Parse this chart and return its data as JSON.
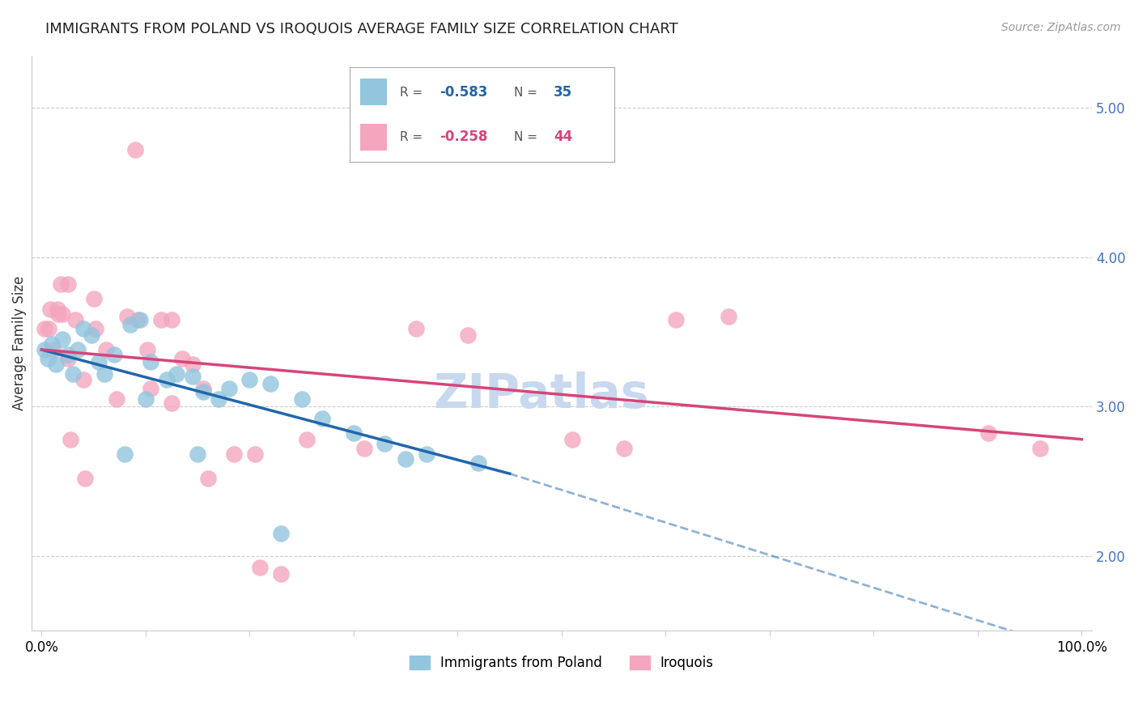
{
  "title": "IMMIGRANTS FROM POLAND VS IROQUOIS AVERAGE FAMILY SIZE CORRELATION CHART",
  "source": "Source: ZipAtlas.com",
  "ylabel": "Average Family Size",
  "watermark": "ZIPatlas",
  "ylim_bottom": 1.5,
  "ylim_top": 5.35,
  "xlim_left": -1.0,
  "xlim_right": 101.0,
  "yticks": [
    2.0,
    3.0,
    4.0,
    5.0
  ],
  "blue_color": "#92c5de",
  "pink_color": "#f4a6be",
  "blue_line_color": "#2166ac",
  "pink_line_color": "#d6457a",
  "blue_scatter": [
    [
      0.3,
      3.38
    ],
    [
      0.6,
      3.32
    ],
    [
      1.0,
      3.42
    ],
    [
      1.4,
      3.28
    ],
    [
      2.0,
      3.45
    ],
    [
      2.5,
      3.35
    ],
    [
      3.0,
      3.22
    ],
    [
      3.5,
      3.38
    ],
    [
      4.0,
      3.52
    ],
    [
      4.8,
      3.48
    ],
    [
      5.5,
      3.3
    ],
    [
      6.0,
      3.22
    ],
    [
      7.0,
      3.35
    ],
    [
      8.5,
      3.55
    ],
    [
      9.5,
      3.58
    ],
    [
      10.5,
      3.3
    ],
    [
      12.0,
      3.18
    ],
    [
      13.0,
      3.22
    ],
    [
      14.5,
      3.2
    ],
    [
      15.5,
      3.1
    ],
    [
      17.0,
      3.05
    ],
    [
      18.0,
      3.12
    ],
    [
      20.0,
      3.18
    ],
    [
      22.0,
      3.15
    ],
    [
      25.0,
      3.05
    ],
    [
      27.0,
      2.92
    ],
    [
      30.0,
      2.82
    ],
    [
      33.0,
      2.75
    ],
    [
      37.0,
      2.68
    ],
    [
      42.0,
      2.62
    ],
    [
      10.0,
      3.05
    ],
    [
      15.0,
      2.68
    ],
    [
      8.0,
      2.68
    ],
    [
      23.0,
      2.15
    ],
    [
      35.0,
      2.65
    ]
  ],
  "pink_scatter": [
    [
      0.3,
      3.52
    ],
    [
      0.7,
      3.52
    ],
    [
      1.1,
      3.38
    ],
    [
      1.6,
      3.62
    ],
    [
      2.0,
      3.62
    ],
    [
      2.5,
      3.32
    ],
    [
      3.2,
      3.58
    ],
    [
      4.0,
      3.18
    ],
    [
      5.2,
      3.52
    ],
    [
      6.2,
      3.38
    ],
    [
      7.2,
      3.05
    ],
    [
      8.2,
      3.6
    ],
    [
      9.2,
      3.58
    ],
    [
      10.2,
      3.38
    ],
    [
      11.5,
      3.58
    ],
    [
      12.5,
      3.58
    ],
    [
      13.5,
      3.32
    ],
    [
      14.5,
      3.28
    ],
    [
      0.8,
      3.65
    ],
    [
      1.5,
      3.65
    ],
    [
      1.8,
      3.82
    ],
    [
      2.5,
      3.82
    ],
    [
      5.0,
      3.72
    ],
    [
      10.5,
      3.12
    ],
    [
      12.5,
      3.02
    ],
    [
      15.5,
      3.12
    ],
    [
      18.5,
      2.68
    ],
    [
      20.5,
      2.68
    ],
    [
      25.5,
      2.78
    ],
    [
      31.0,
      2.72
    ],
    [
      36.0,
      3.52
    ],
    [
      41.0,
      3.48
    ],
    [
      51.0,
      2.78
    ],
    [
      56.0,
      2.72
    ],
    [
      61.0,
      3.58
    ],
    [
      66.0,
      3.6
    ],
    [
      9.0,
      4.72
    ],
    [
      2.8,
      2.78
    ],
    [
      4.2,
      2.52
    ],
    [
      21.0,
      1.92
    ],
    [
      23.0,
      1.88
    ],
    [
      91.0,
      2.82
    ],
    [
      96.0,
      2.72
    ],
    [
      16.0,
      2.52
    ]
  ],
  "blue_solid_line": [
    [
      0,
      3.38
    ],
    [
      45,
      2.55
    ]
  ],
  "blue_dashed_line": [
    [
      45,
      2.55
    ],
    [
      100,
      1.35
    ]
  ],
  "pink_solid_line": [
    [
      0,
      3.38
    ],
    [
      100,
      2.78
    ]
  ],
  "legend_label1": "Immigrants from Poland",
  "legend_label2": "Iroquois",
  "title_fontsize": 13,
  "source_fontsize": 10,
  "axis_label_fontsize": 12,
  "tick_fontsize": 12,
  "watermark_fontsize": 42,
  "watermark_color": "#c8d8ee",
  "right_tick_color": "#4472c4"
}
